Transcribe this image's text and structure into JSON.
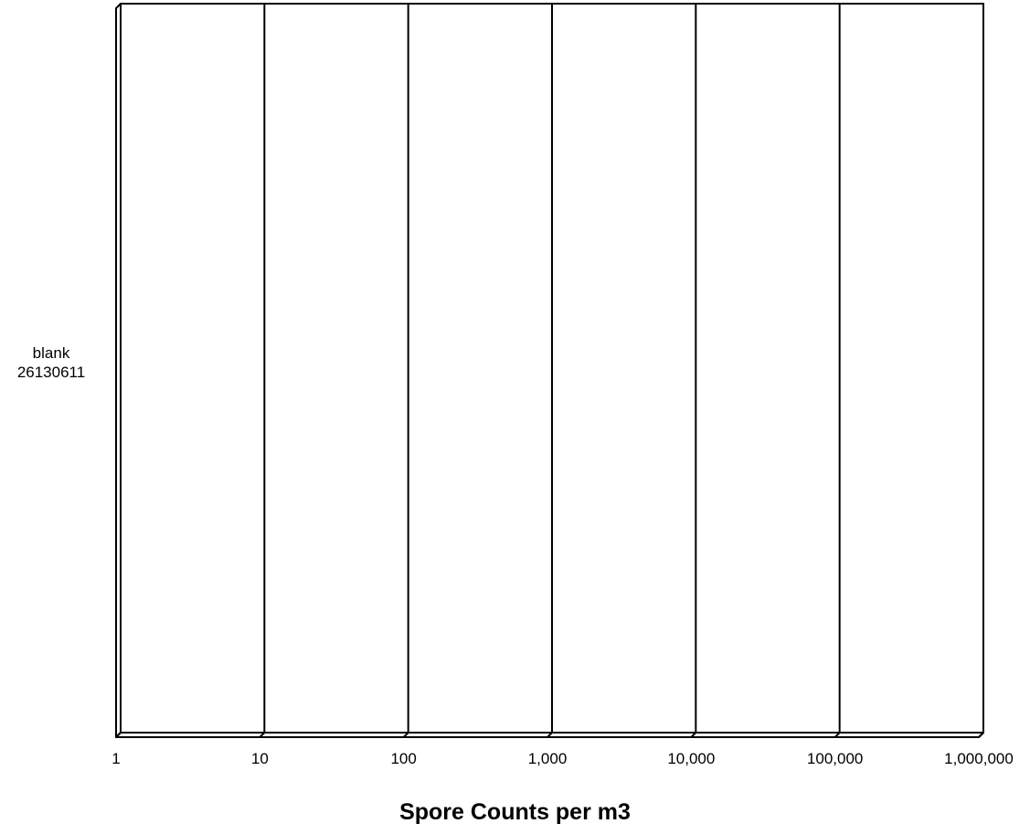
{
  "chart_data": {
    "type": "bar",
    "orientation": "horizontal",
    "x_scale": "log",
    "categories": [
      [
        "blank",
        "26130611"
      ]
    ],
    "values": [
      null
    ],
    "xlim": [
      1,
      1000000
    ],
    "x_ticks": [
      1,
      10,
      100,
      1000,
      10000,
      100000,
      1000000
    ],
    "x_tick_labels": [
      "1",
      "10",
      "100",
      "1,000",
      "10,000",
      "100,000",
      "1,000,000"
    ],
    "xlabel": "Spore Counts per m3",
    "ylabel": "",
    "title": "",
    "grid": "vertical",
    "legend": "none"
  }
}
